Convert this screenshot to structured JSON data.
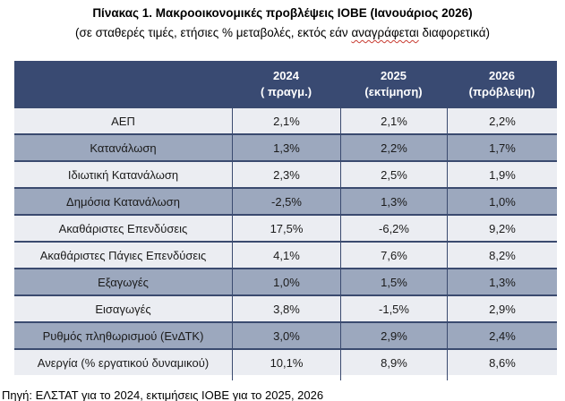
{
  "title": "Πίνακας 1. Μακροοικονομικές προβλέψεις ΙΟΒΕ (Ιανουάριος 2026)",
  "subtitle": {
    "prefix": "(σε σταθερές τιμές, ετήσιες % μεταβολές, εκτός εάν ",
    "misspelled_word": "αναγράφεται",
    "suffix": " διαφορετικά)"
  },
  "table": {
    "columns": [
      {
        "year": "2024",
        "note": "( πραγμ.)"
      },
      {
        "year": "2025",
        "note": "(εκτίμηση)"
      },
      {
        "year": "2026",
        "note": "(πρόβλεψη)"
      }
    ],
    "rows": [
      {
        "label": "ΑΕΠ",
        "values": [
          "2,1%",
          "2,1%",
          "2,2%"
        ]
      },
      {
        "label": "Κατανάλωση",
        "values": [
          "1,3%",
          "2,2%",
          "1,7%"
        ]
      },
      {
        "label": "Ιδιωτική Κατανάλωση",
        "values": [
          "2,3%",
          "2,5%",
          "1,9%"
        ]
      },
      {
        "label": "Δημόσια Κατανάλωση",
        "values": [
          "-2,5%",
          "1,3%",
          "1,0%"
        ]
      },
      {
        "label": "Ακαθάριστες Επενδύσεις",
        "values": [
          "17,5%",
          "-6,2%",
          "9,2%"
        ]
      },
      {
        "label": "Ακαθάριστες Πάγιες Επενδύσεις",
        "values": [
          "4,1%",
          "7,6%",
          "8,2%"
        ]
      },
      {
        "label": "Εξαγωγές",
        "values": [
          "1,0%",
          "1,5%",
          "1,3%"
        ]
      },
      {
        "label": "Εισαγωγές",
        "values": [
          "3,8%",
          "-1,5%",
          "2,9%"
        ]
      },
      {
        "label": "Ρυθμός πληθωρισμού (ΕνΔΤΚ)",
        "values": [
          "3,0%",
          "2,9%",
          "2,4%"
        ]
      },
      {
        "label": "Ανεργία (% εργατικού δυναμικού)",
        "values": [
          "10,1%",
          "8,9%",
          "8,6%"
        ]
      }
    ]
  },
  "footer": "Πηγή: ΕΛΣΤΑΤ για το 2024, εκτιμήσεις ΙΟΒΕ για το 2025, 2026",
  "colors": {
    "header_bg": "#394A72",
    "header_text": "#FFFFFF",
    "shaded_row_bg": "#9CA8BE",
    "light_row_bg": "#EBEDF2",
    "grid_border": "#3A4A6F",
    "spellcheck_underline": "#C83C32",
    "body_text": "#1B1B1B"
  }
}
